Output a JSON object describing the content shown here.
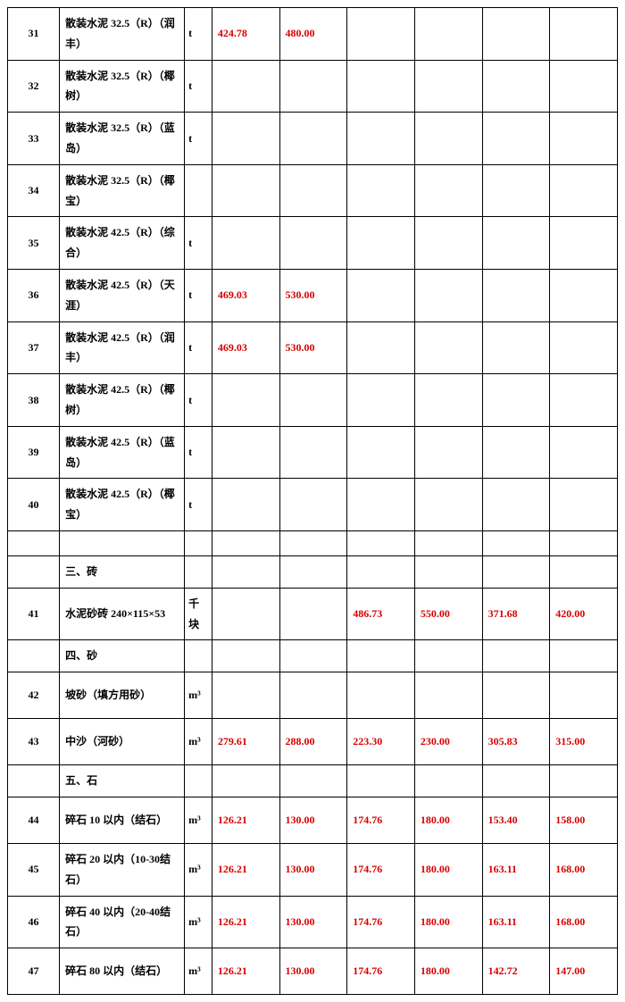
{
  "colors": {
    "text": "#000000",
    "value": "#d60000",
    "border": "#000000",
    "background": "#ffffff"
  },
  "columns": {
    "num_width_pct": 8.5,
    "name_width_pct": 20.5,
    "unit_width_pct": 4.5,
    "value_width_pct": 11.08
  },
  "typography": {
    "font_family": "SimSun",
    "font_size_pt": 9,
    "line_height": 1.9,
    "weight": "bold"
  },
  "rows": [
    {
      "num": "31",
      "name": "散装水泥 32.5（R）（润丰）",
      "unit": "t",
      "v1": "424.78",
      "v2": "480.00",
      "v3": "",
      "v4": "",
      "v5": "",
      "v6": ""
    },
    {
      "num": "32",
      "name": "散装水泥 32.5（R）（椰树）",
      "unit": "t",
      "v1": "",
      "v2": "",
      "v3": "",
      "v4": "",
      "v5": "",
      "v6": ""
    },
    {
      "num": "33",
      "name": "散装水泥 32.5（R）（蓝岛）",
      "unit": "t",
      "v1": "",
      "v2": "",
      "v3": "",
      "v4": "",
      "v5": "",
      "v6": ""
    },
    {
      "num": "34",
      "name": "散装水泥 32.5（R）（椰宝）",
      "unit": "",
      "v1": "",
      "v2": "",
      "v3": "",
      "v4": "",
      "v5": "",
      "v6": ""
    },
    {
      "num": "35",
      "name": "散装水泥 42.5（R）（综合）",
      "unit": "t",
      "v1": "",
      "v2": "",
      "v3": "",
      "v4": "",
      "v5": "",
      "v6": ""
    },
    {
      "num": "36",
      "name": "散装水泥 42.5（R）（天涯）",
      "unit": "t",
      "v1": "469.03",
      "v2": "530.00",
      "v3": "",
      "v4": "",
      "v5": "",
      "v6": ""
    },
    {
      "num": "37",
      "name": "散装水泥 42.5（R）（润丰）",
      "unit": "t",
      "v1": "469.03",
      "v2": "530.00",
      "v3": "",
      "v4": "",
      "v5": "",
      "v6": ""
    },
    {
      "num": "38",
      "name": "散装水泥 42.5（R）（椰树）",
      "unit": "t",
      "v1": "",
      "v2": "",
      "v3": "",
      "v4": "",
      "v5": "",
      "v6": ""
    },
    {
      "num": "39",
      "name": "散装水泥 42.5（R）（蓝岛）",
      "unit": "t",
      "v1": "",
      "v2": "",
      "v3": "",
      "v4": "",
      "v5": "",
      "v6": ""
    },
    {
      "num": "40",
      "name": "散装水泥 42.5（R）（椰宝）",
      "unit": "t",
      "v1": "",
      "v2": "",
      "v3": "",
      "v4": "",
      "v5": "",
      "v6": ""
    },
    {
      "num": "",
      "name": "",
      "unit": "",
      "v1": "",
      "v2": "",
      "v3": "",
      "v4": "",
      "v5": "",
      "v6": "",
      "short": true
    },
    {
      "num": "",
      "name": "三、砖",
      "unit": "",
      "v1": "",
      "v2": "",
      "v3": "",
      "v4": "",
      "v5": "",
      "v6": "",
      "short": true
    },
    {
      "num": "41",
      "name": "水泥砂砖  240×115×53",
      "unit": "千块",
      "v1": "",
      "v2": "",
      "v3": "486.73",
      "v4": "550.00",
      "v5": "371.68",
      "v6": "420.00"
    },
    {
      "num": "",
      "name": "四、砂",
      "unit": "",
      "v1": "",
      "v2": "",
      "v3": "",
      "v4": "",
      "v5": "",
      "v6": "",
      "short": true
    },
    {
      "num": "42",
      "name": "坡砂（填方用砂）",
      "unit": "m³",
      "v1": "",
      "v2": "",
      "v3": "",
      "v4": "",
      "v5": "",
      "v6": ""
    },
    {
      "num": "43",
      "name": "中沙（河砂）",
      "unit": "m³",
      "v1": "279.61",
      "v2": "288.00",
      "v3": "223.30",
      "v4": "230.00",
      "v5": "305.83",
      "v6": "315.00"
    },
    {
      "num": "",
      "name": "五、石",
      "unit": "",
      "v1": "",
      "v2": "",
      "v3": "",
      "v4": "",
      "v5": "",
      "v6": "",
      "short": true
    },
    {
      "num": "44",
      "name": "碎石 10 以内（结石）",
      "unit": "m³",
      "v1": "126.21",
      "v2": "130.00",
      "v3": "174.76",
      "v4": "180.00",
      "v5": "153.40",
      "v6": "158.00"
    },
    {
      "num": "45",
      "name": "碎石 20 以内（10-30结石）",
      "unit": "m³",
      "v1": "126.21",
      "v2": "130.00",
      "v3": "174.76",
      "v4": "180.00",
      "v5": "163.11",
      "v6": "168.00"
    },
    {
      "num": "46",
      "name": "碎石 40 以内（20-40结石）",
      "unit": "m³",
      "v1": "126.21",
      "v2": "130.00",
      "v3": "174.76",
      "v4": "180.00",
      "v5": "163.11",
      "v6": "168.00"
    },
    {
      "num": "47",
      "name": "碎石 80 以内（结石）",
      "unit": "m³",
      "v1": "126.21",
      "v2": "130.00",
      "v3": "174.76",
      "v4": "180.00",
      "v5": "142.72",
      "v6": "147.00"
    }
  ]
}
